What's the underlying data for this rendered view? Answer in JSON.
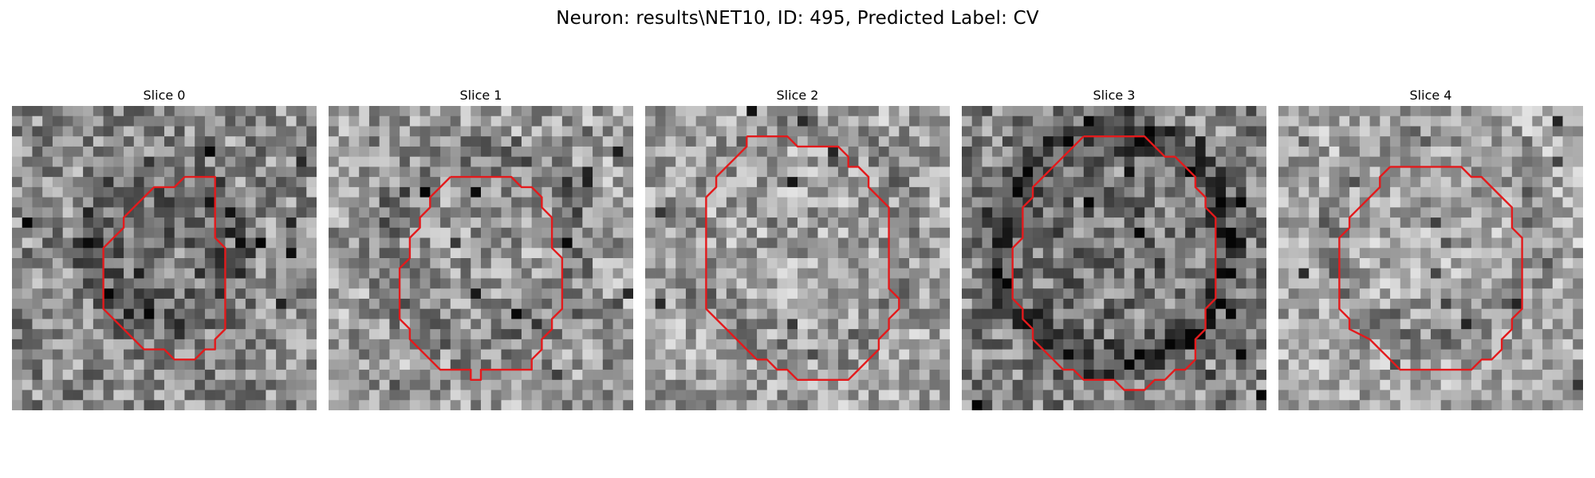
{
  "figure": {
    "title": "Neuron: results\\NET10, ID: 495, Predicted Label: CV"
  },
  "panels": [
    {
      "title": "Slice 0"
    },
    {
      "title": "Slice 1"
    },
    {
      "title": "Slice 2"
    },
    {
      "title": "Slice 3"
    },
    {
      "title": "Slice 4"
    }
  ],
  "style": {
    "contour_color": "#e31a1c",
    "image_colormap": "gray"
  }
}
